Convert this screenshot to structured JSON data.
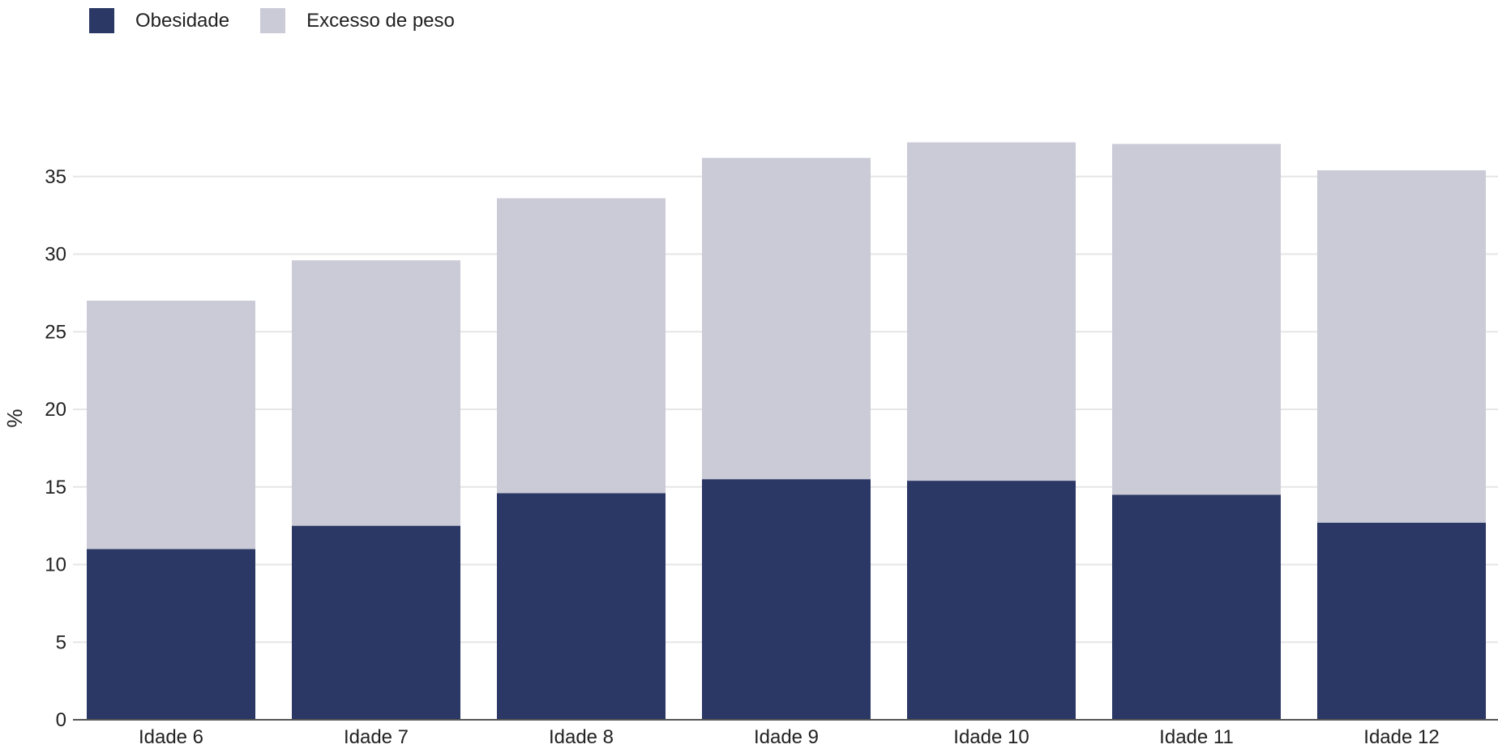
{
  "legend": {
    "items": [
      {
        "label": "Obesidade",
        "color": "#2b3764"
      },
      {
        "label": "Excesso de peso",
        "color": "#cacbd7"
      }
    ]
  },
  "chart_data": {
    "type": "bar",
    "stacked": true,
    "categories": [
      "Idade 6",
      "Idade 7",
      "Idade 8",
      "Idade 9",
      "Idade 10",
      "Idade 11",
      "Idade 12"
    ],
    "series": [
      {
        "name": "Obesidade",
        "color": "#2b3764",
        "values": [
          11.0,
          12.5,
          14.6,
          15.5,
          15.4,
          14.5,
          12.7
        ]
      },
      {
        "name": "Excesso de peso",
        "color": "#cacbd7",
        "values": [
          16.0,
          17.1,
          19.0,
          20.7,
          21.8,
          22.6,
          22.7
        ]
      }
    ],
    "ylabel": "%",
    "ylim": [
      0,
      37
    ],
    "yticks": [
      0,
      5,
      10,
      15,
      20,
      25,
      30,
      35
    ],
    "grid": true,
    "legend_position": "top-left"
  }
}
